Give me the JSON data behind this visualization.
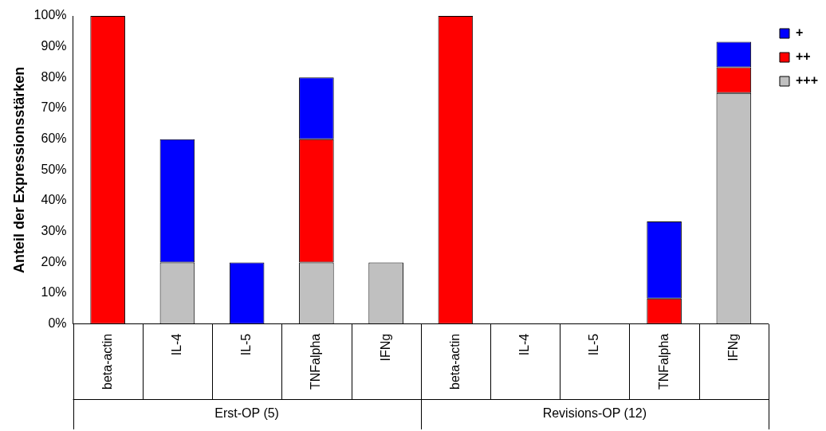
{
  "chart_data": {
    "type": "bar",
    "stacked": true,
    "ylabel": "Anteil der Expressionsstärken",
    "categories": [
      "beta-actin",
      "IL-4",
      "IL-5",
      "TNFalpha",
      "IFNg",
      "beta-actin",
      "IL-4",
      "IL-5",
      "TNFalpha",
      "IFNg"
    ],
    "series": [
      {
        "name": "+++",
        "color": "#c0c0c0",
        "values": [
          0,
          20,
          0,
          20,
          20,
          0,
          0,
          0,
          0,
          75
        ]
      },
      {
        "name": "++",
        "color": "#ff0000",
        "values": [
          100,
          0,
          0,
          40,
          0,
          100,
          0,
          0,
          8.3,
          8.3
        ]
      },
      {
        "name": "+",
        "color": "#0000ff",
        "values": [
          0,
          40,
          20,
          20,
          0,
          0,
          0,
          0,
          25,
          8.3
        ]
      }
    ],
    "ylim": [
      0,
      100
    ],
    "yticks": [
      {
        "value": 0,
        "label": "0%"
      },
      {
        "value": 10,
        "label": "10%"
      },
      {
        "value": 20,
        "label": "20%"
      },
      {
        "value": 30,
        "label": "30%"
      },
      {
        "value": 40,
        "label": "40%"
      },
      {
        "value": 50,
        "label": "50%"
      },
      {
        "value": 60,
        "label": "60%"
      },
      {
        "value": 70,
        "label": "70%"
      },
      {
        "value": 80,
        "label": "80%"
      },
      {
        "value": 90,
        "label": "90%"
      },
      {
        "value": 100,
        "label": "100%"
      }
    ],
    "grid": false,
    "legend": "top right",
    "annotations": [
      "Erst-OP (5)",
      "Revisions-OP (12)"
    ]
  }
}
